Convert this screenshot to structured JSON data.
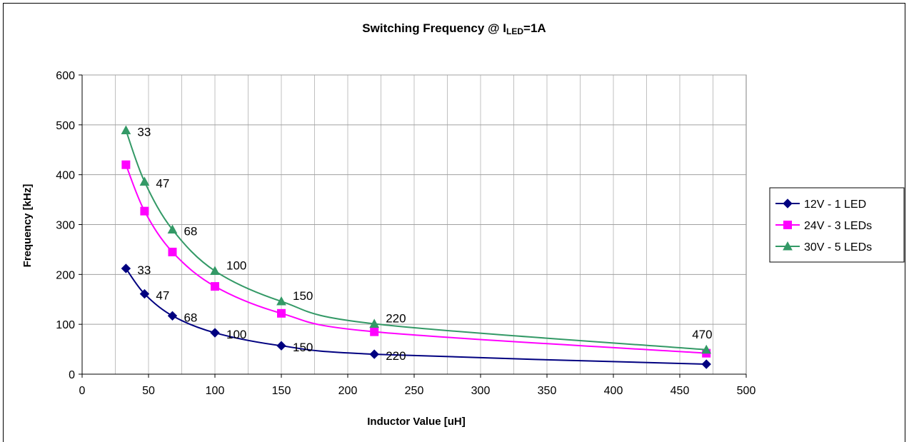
{
  "chart_data": {
    "type": "line",
    "title": "Switching Frequency @ I",
    "title_subscript": "LED",
    "title_suffix": "=1A",
    "xlabel": "Inductor Value [uH]",
    "ylabel": "Frequency [kHz]",
    "xlim": [
      0,
      500
    ],
    "ylim": [
      0,
      600
    ],
    "xticks": [
      0,
      50,
      100,
      150,
      200,
      250,
      300,
      350,
      400,
      450,
      500
    ],
    "yticks": [
      0,
      100,
      200,
      300,
      400,
      500,
      600
    ],
    "grid": true,
    "legend_position": "right",
    "series": [
      {
        "name": "12V - 1 LED",
        "color": "#000080",
        "marker": "diamond",
        "x": [
          33,
          47,
          68,
          100,
          150,
          220,
          470
        ],
        "y": [
          212,
          161,
          117,
          83,
          57,
          40,
          20
        ],
        "labels": [
          "33",
          "47",
          "68",
          "100",
          "150",
          "220",
          ""
        ]
      },
      {
        "name": "24V - 3 LEDs",
        "color": "#ff00ff",
        "marker": "square",
        "x": [
          33,
          47,
          68,
          100,
          150,
          220,
          470
        ],
        "y": [
          420,
          327,
          245,
          176,
          122,
          85,
          42
        ],
        "labels": [
          "",
          "",
          "",
          "",
          "",
          "",
          ""
        ]
      },
      {
        "name": "30V - 5 LEDs",
        "color": "#339966",
        "marker": "triangle",
        "x": [
          33,
          47,
          68,
          100,
          150,
          220,
          470
        ],
        "y": [
          489,
          386,
          290,
          207,
          146,
          101,
          49
        ],
        "labels": [
          "33",
          "47",
          "68",
          "100",
          "150",
          "220",
          "470"
        ]
      }
    ]
  }
}
